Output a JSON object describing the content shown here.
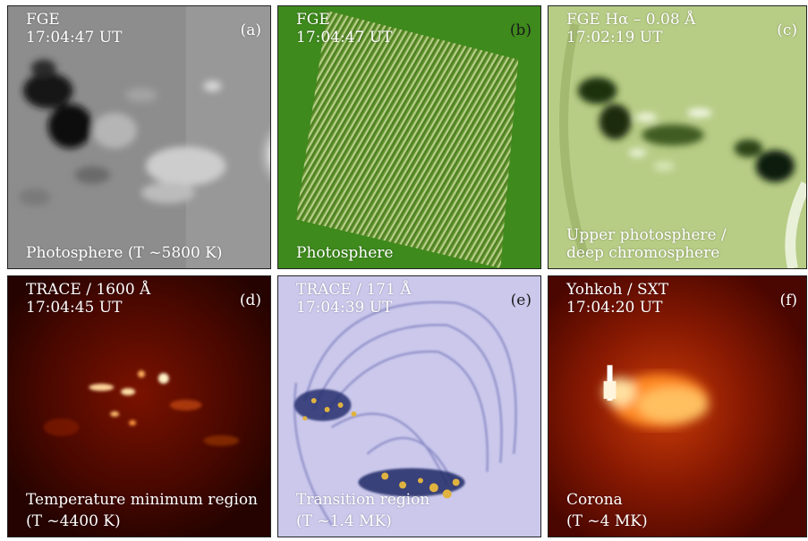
{
  "panels": {
    "a": {
      "instrument": "FGE",
      "time": "17:04:47 UT",
      "letter": "(a)",
      "region": "Photosphere (T ~5800 K)"
    },
    "b": {
      "instrument": "FGE",
      "time": "17:04:47 UT",
      "letter": "(b)",
      "region": "Photosphere"
    },
    "c": {
      "instrument": "FGE Hα – 0.08 Å",
      "time": "17:02:19 UT",
      "letter": "(c)",
      "region_line1": "Upper photosphere /",
      "region_line2": "deep chromosphere"
    },
    "d": {
      "instrument": "TRACE / 1600 Å",
      "time": "17:04:45 UT",
      "letter": "(d)",
      "region_line1": "Temperature minimum region",
      "region_line2": "(T ~4400 K)"
    },
    "e": {
      "instrument": "TRACE / 171 Å",
      "time": "17:04:39 UT",
      "letter": "(e)",
      "region_line1": "Transition region",
      "region_line2": "(T ~1.4 MK)"
    },
    "f": {
      "instrument": "Yohkoh / SXT",
      "time": "17:04:20 UT",
      "letter": "(f)",
      "region_line1": "Corona",
      "region_line2": "(T ~4 MK)"
    }
  },
  "colors": {
    "photosphere_gray": "#8a8a8a",
    "green_bg": "#3e8a1c",
    "halpha_green": "#b9cf86",
    "trace1600_dark": "#2a0400",
    "trace171_bg": "#c9c6ec",
    "sxt_dark": "#4a0600"
  }
}
